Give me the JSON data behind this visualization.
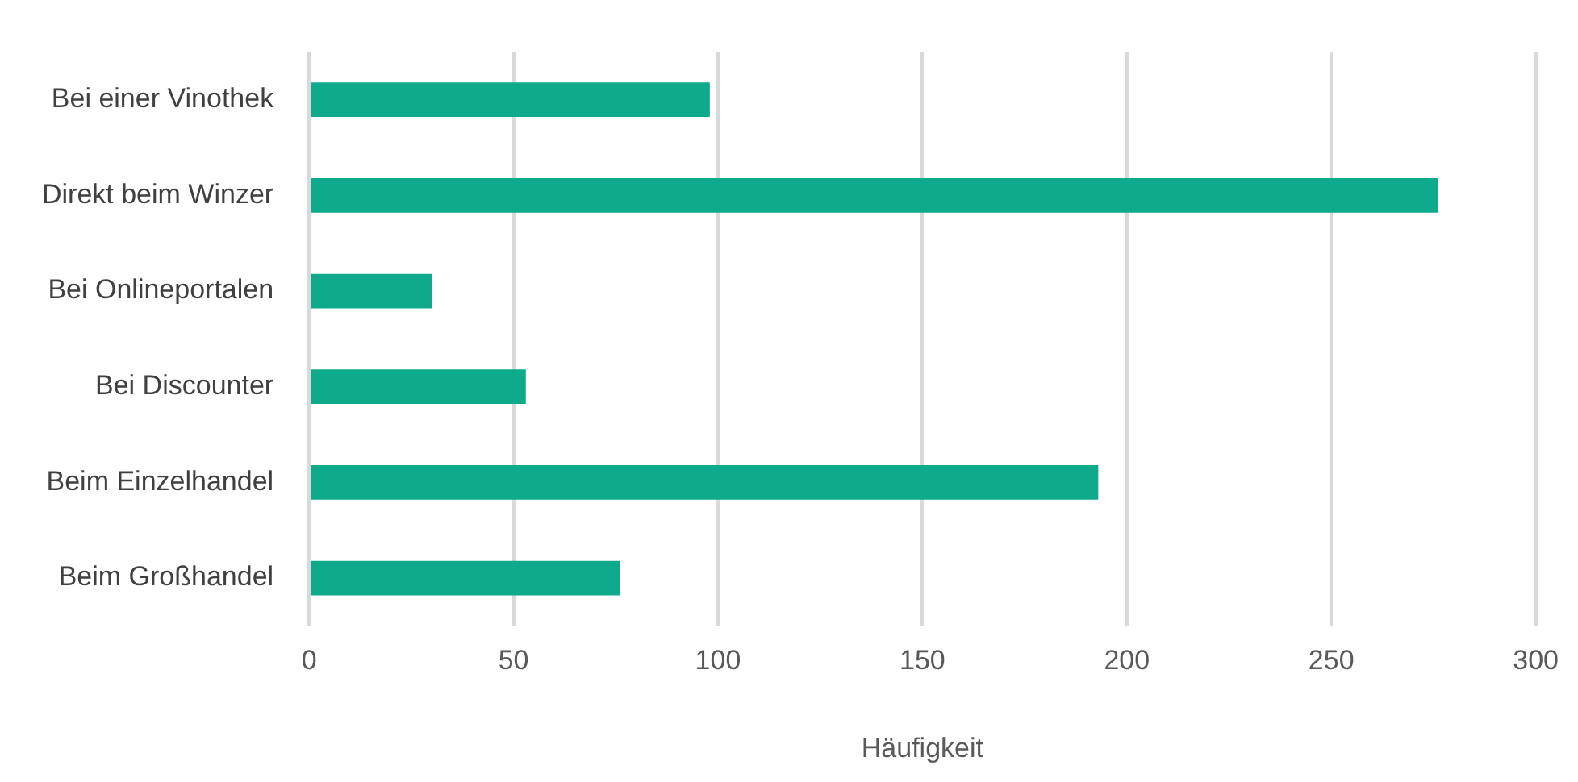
{
  "chart_data": {
    "type": "bar",
    "orientation": "horizontal",
    "xlabel": "Häufigkeit",
    "categories": [
      "Bei einer Vinothek",
      "Direkt beim Winzer",
      "Bei Onlineportalen",
      "Bei Discounter",
      "Beim Einzelhandel",
      "Beim Großhandel"
    ],
    "values": [
      98,
      276,
      30,
      53,
      193,
      76
    ],
    "color": "#0eaa8b",
    "xlim": [
      0,
      300
    ],
    "xticks": [
      0,
      50,
      100,
      150,
      200,
      250,
      300
    ],
    "grid": "x",
    "legend": false
  }
}
